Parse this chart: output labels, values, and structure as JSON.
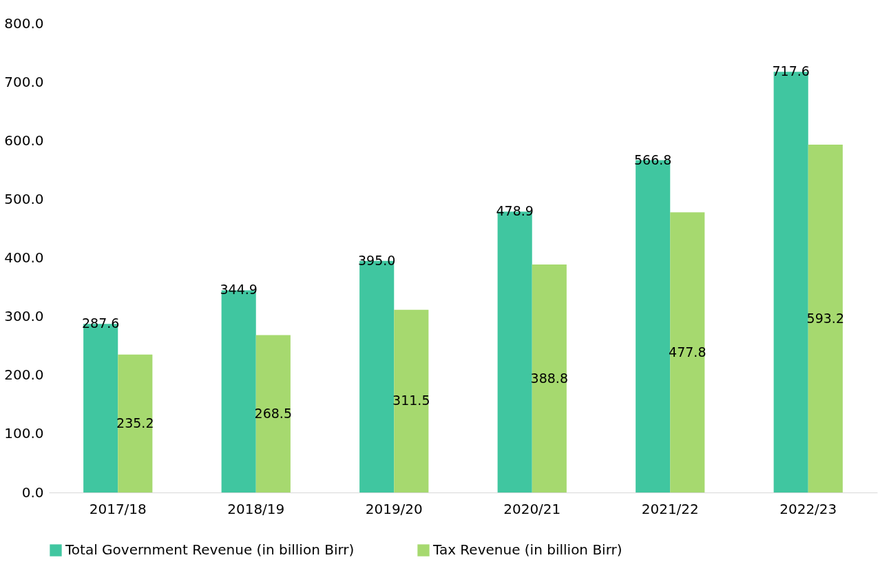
{
  "chart_data": {
    "type": "bar",
    "categories": [
      "2017/18",
      "2018/19",
      "2019/20",
      "2020/21",
      "2021/22",
      "2022/23"
    ],
    "series": [
      {
        "name": "Total Government Revenue (in billion Birr)",
        "color": "#40c6a0",
        "values": [
          287.6,
          344.9,
          395.0,
          478.9,
          566.8,
          717.6
        ],
        "value_labels": [
          "287.6",
          "344.9",
          "395.0",
          "478.9",
          "566.8",
          "717.6"
        ]
      },
      {
        "name": "Tax Revenue (in billion Birr)",
        "color": "#a6d96f",
        "values": [
          235.2,
          268.5,
          311.5,
          388.8,
          477.8,
          593.2
        ],
        "value_labels": [
          "235.2",
          "268.5",
          "311.5",
          "388.8",
          "477.8",
          "593.2"
        ]
      }
    ],
    "ylim": [
      0,
      800
    ],
    "yticks": [
      {
        "value": 0,
        "label": "0.0"
      },
      {
        "value": 100,
        "label": "100.0"
      },
      {
        "value": 200,
        "label": "200.0"
      },
      {
        "value": 300,
        "label": "300.0"
      },
      {
        "value": 400,
        "label": "400.0"
      },
      {
        "value": 500,
        "label": "500.0"
      },
      {
        "value": 600,
        "label": "600.0"
      },
      {
        "value": 700,
        "label": "700.0"
      },
      {
        "value": 800,
        "label": "800.0"
      }
    ],
    "grid": false,
    "legend": "bottom"
  }
}
